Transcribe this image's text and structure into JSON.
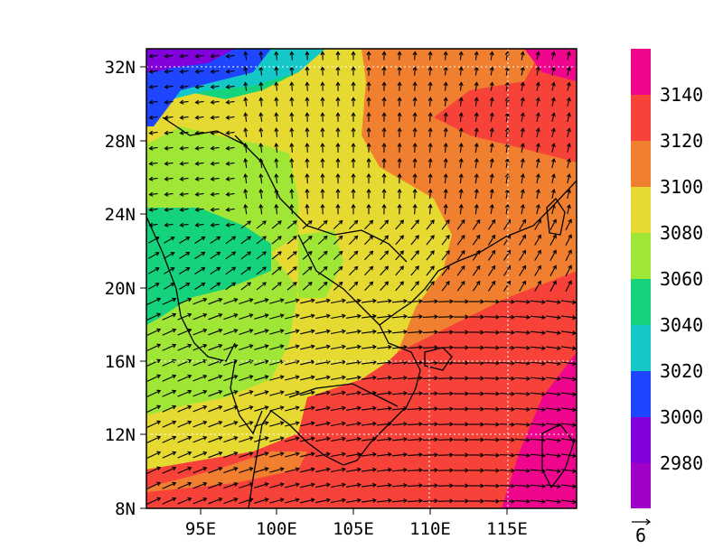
{
  "map": {
    "type": "contour-vector-map",
    "lat_ticks": [
      "32N",
      "28N",
      "24N",
      "20N",
      "16N",
      "12N",
      "8N"
    ],
    "lon_ticks": [
      "95E",
      "100E",
      "105E",
      "110E",
      "115E"
    ],
    "extent": {
      "lon": [
        91.5,
        119.5
      ],
      "lat": [
        8,
        33
      ]
    },
    "grid_lines": true
  },
  "colorbar": {
    "labels": [
      "3140",
      "3120",
      "3100",
      "3080",
      "3060",
      "3040",
      "3020",
      "3000",
      "2980"
    ],
    "colors": [
      "#f0068c",
      "#f7423a",
      "#f08030",
      "#e6da32",
      "#a0e636",
      "#14d37c",
      "#14c8c8",
      "#1e46ff",
      "#8200dc",
      "#a000c8"
    ]
  },
  "reference_vector": {
    "label": "6"
  },
  "colors": {
    "coast": "#000000",
    "arrow": "#000000",
    "grid": "#ffffff"
  }
}
